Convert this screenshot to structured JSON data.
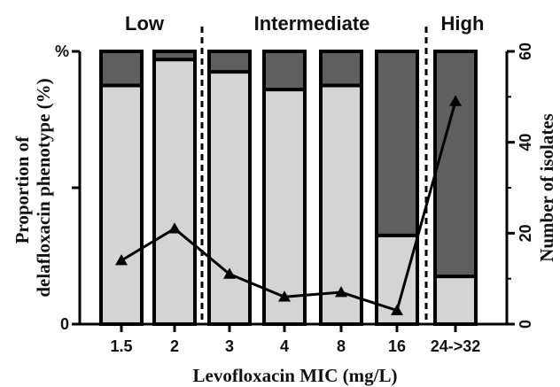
{
  "chart_data": {
    "type": "bar",
    "stacked": true,
    "title": "",
    "xlabel": "Levofloxacin MIC (mg/L)",
    "ylabel_left": "Proportion of delafloxacin phenotype (%)",
    "ylabel_left_lines": [
      "Proportion of",
      "delafloxacin phenotype (%)"
    ],
    "ylabel_right": "Number of isolates",
    "categories": [
      "1.5",
      "2",
      "3",
      "4",
      "8",
      "16",
      "24->32"
    ],
    "y_left_ticks": [
      "0",
      "%"
    ],
    "y_left_range": [
      0,
      100
    ],
    "y_right_ticks": [
      0,
      20,
      40,
      60
    ],
    "y_right_range": [
      0,
      60
    ],
    "groups": [
      {
        "label": "Low",
        "categories": [
          "1.5",
          "2"
        ]
      },
      {
        "label": "Intermediate",
        "categories": [
          "3",
          "4",
          "8",
          "16"
        ]
      },
      {
        "label": "High",
        "categories": [
          "24->32"
        ]
      }
    ],
    "series": [
      {
        "kind": "bar",
        "color": "#d4d4d4",
        "values": [
          87.5,
          97,
          92.5,
          86,
          87.5,
          32.5,
          17.5
        ]
      },
      {
        "kind": "bar",
        "color": "#5f5f5f",
        "values": [
          12.5,
          3,
          7.5,
          14,
          12.5,
          67.5,
          82.5
        ]
      },
      {
        "kind": "line",
        "axis": "right",
        "marker": "triangle",
        "values": [
          14,
          21,
          11,
          6,
          7,
          3,
          49
        ]
      }
    ]
  }
}
